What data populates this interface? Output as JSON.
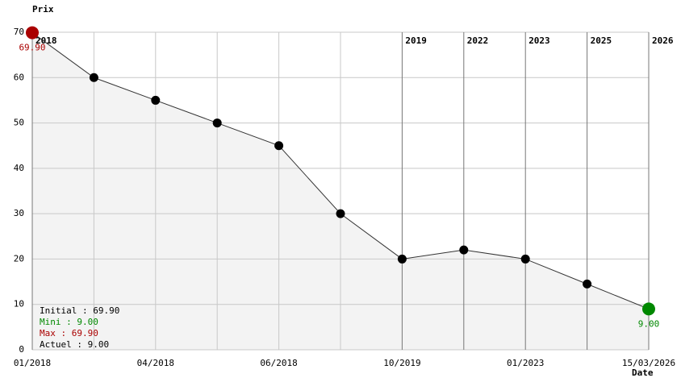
{
  "chart_data": {
    "type": "line",
    "y_label": "Prix",
    "x_label": "Date",
    "categories": [
      "01/2018",
      null,
      "04/2018",
      null,
      "06/2018",
      null,
      "10/2019",
      null,
      "01/2023",
      null,
      "15/03/2026"
    ],
    "year_labels": [
      "2018",
      null,
      null,
      null,
      null,
      null,
      "2019",
      "2022",
      "2023",
      "2025",
      "2026"
    ],
    "series": [
      {
        "color": "#000000",
        "values": [
          69.9,
          60,
          55,
          50,
          45,
          30,
          20,
          22,
          20,
          14.5,
          9
        ],
        "value_labels": [
          "69.90",
          null,
          null,
          null,
          null,
          null,
          null,
          null,
          null,
          null,
          "9.00"
        ]
      }
    ],
    "first_color": "#aa0000",
    "last_color": "#008800",
    "ylim": [
      0,
      70
    ],
    "yticks": [
      0,
      10,
      20,
      30,
      40,
      50,
      60,
      70
    ],
    "grid": true,
    "summary": [
      {
        "text": "Initial : 69.90",
        "color": "#000000"
      },
      {
        "text": "Mini : 9.00",
        "color": "#008800"
      },
      {
        "text": "Max : 69.90",
        "color": "#aa0000"
      },
      {
        "text": "Actuel : 9.00",
        "color": "#000000"
      }
    ]
  }
}
